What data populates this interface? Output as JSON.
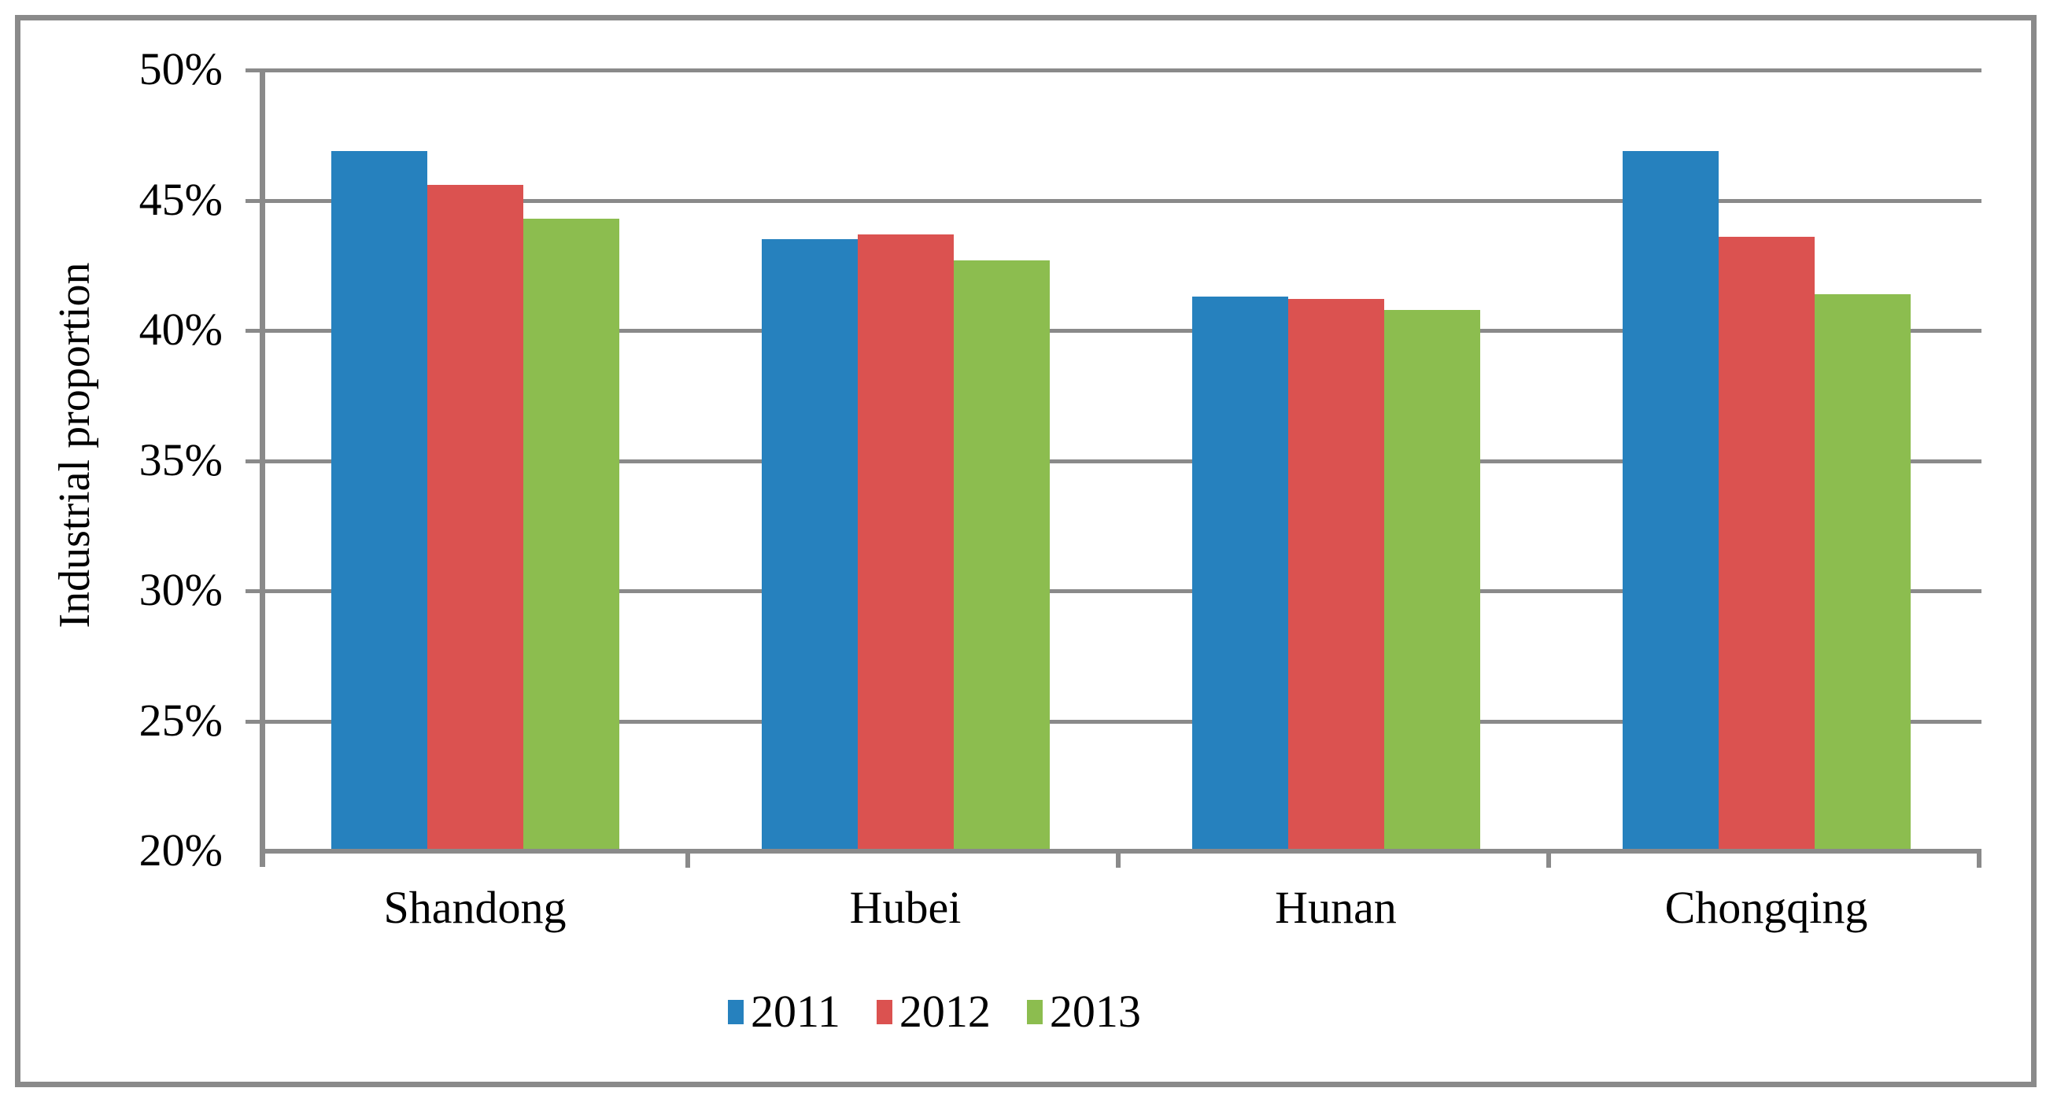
{
  "chart_data": {
    "type": "bar",
    "title": "",
    "xlabel": "",
    "ylabel": "Industrial proportion",
    "categories": [
      "Shandong",
      "Hubei",
      "Hunan",
      "Chongqing"
    ],
    "series": [
      {
        "name": "2011",
        "color": "#2681BE",
        "values": [
          46.9,
          43.5,
          41.3,
          46.9
        ]
      },
      {
        "name": "2012",
        "color": "#DB5250",
        "values": [
          45.6,
          43.7,
          41.2,
          43.6
        ]
      },
      {
        "name": "2013",
        "color": "#8CBD4F",
        "values": [
          44.3,
          42.7,
          40.8,
          41.4
        ]
      }
    ],
    "y_axis": {
      "min": 20,
      "max": 50,
      "step": 5,
      "tick_labels": [
        "20%",
        "25%",
        "30%",
        "35%",
        "40%",
        "45%",
        "50%"
      ],
      "unit": "percent"
    },
    "grid": "horizontal-on",
    "legend": {
      "position": "bottom",
      "labels": [
        "2011",
        "2012",
        "2013"
      ]
    },
    "colors": {
      "axis": "#8A8A8A",
      "grid": "#8A8A8A",
      "figure_border": "#8A8A8A",
      "text": "#000000",
      "background": "#FFFFFF"
    }
  }
}
